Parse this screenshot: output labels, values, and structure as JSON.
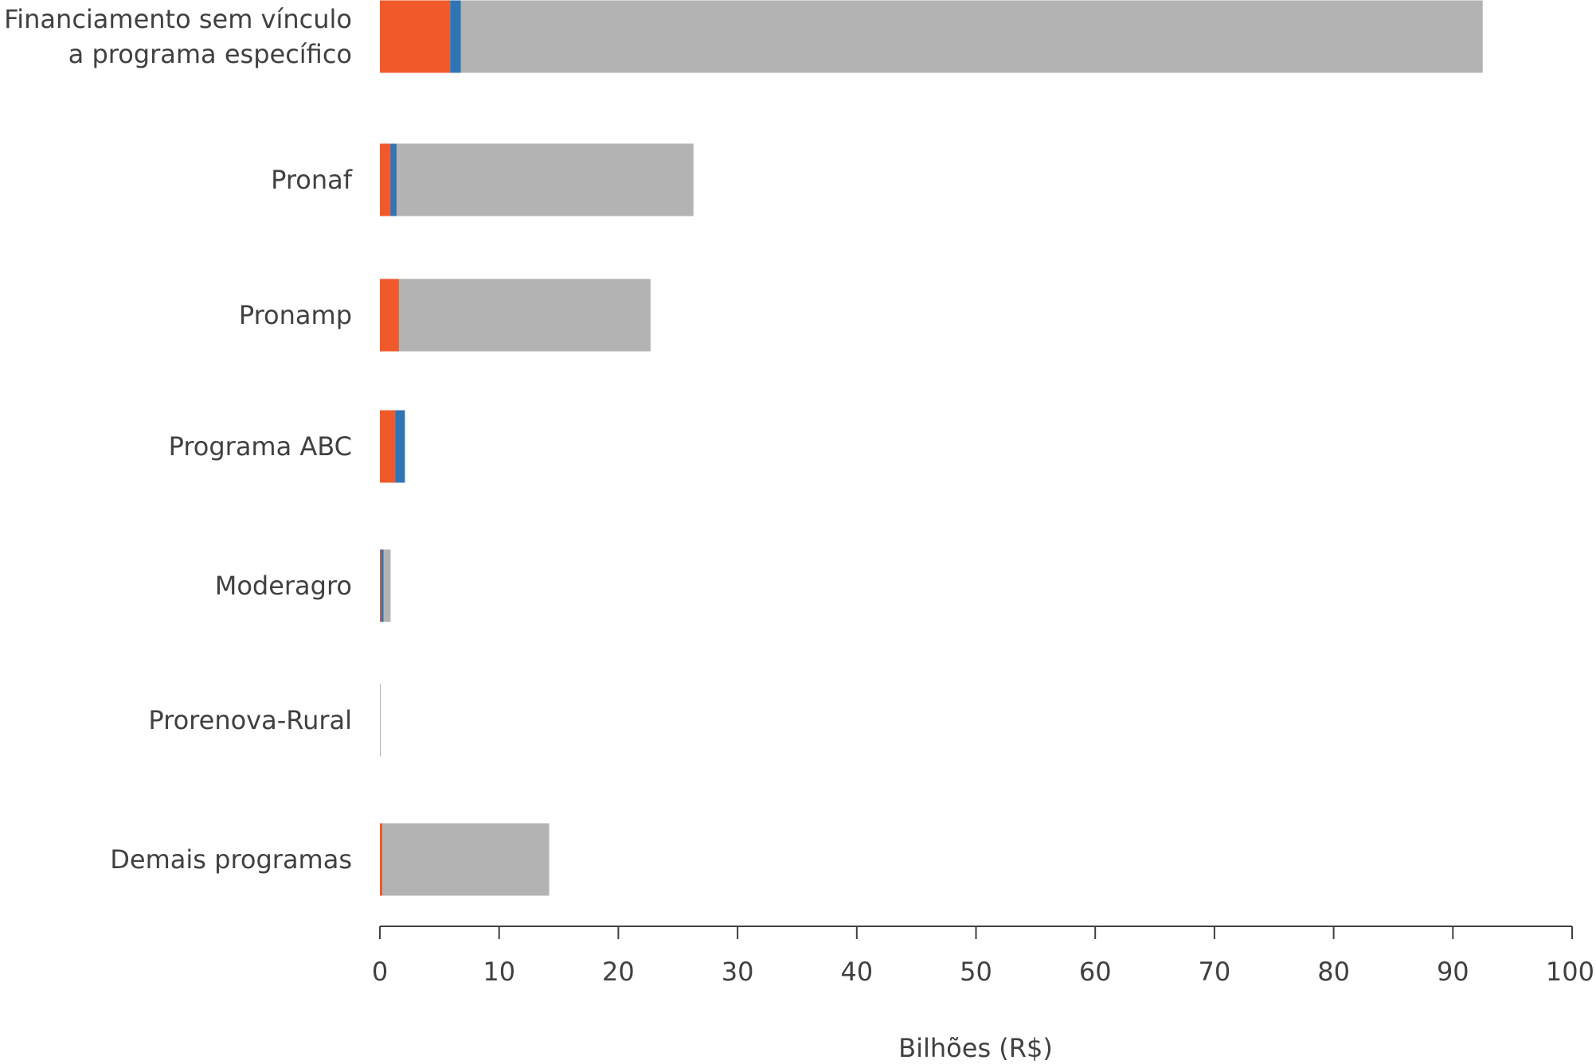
{
  "chart_data": {
    "type": "bar",
    "orientation": "horizontal",
    "stacked": true,
    "categories": [
      [
        "Financiamento sem vínculo",
        "a programa específico"
      ],
      [
        "Pronaf"
      ],
      [
        "Pronamp"
      ],
      [
        "Programa ABC"
      ],
      [
        "Moderagro"
      ],
      [
        "Prorenova-Rural"
      ],
      [
        "Demais programas"
      ]
    ],
    "series": [
      {
        "color": "#f05a2b",
        "values": [
          5.9,
          0.9,
          1.6,
          1.3,
          0.1,
          0.0,
          0.2
        ]
      },
      {
        "color": "#2f74b5",
        "values": [
          0.9,
          0.5,
          0.0,
          0.8,
          0.2,
          0.0,
          0.0
        ]
      },
      {
        "color": "#b3b3b3",
        "values": [
          85.7,
          24.9,
          21.1,
          0.0,
          0.6,
          0.05,
          14.0
        ]
      }
    ],
    "xlabel": "Bilhões (R$)",
    "xlim": [
      0,
      100
    ],
    "xticks": [
      "0",
      "10",
      "20",
      "30",
      "40",
      "50",
      "60",
      "70",
      "80",
      "90",
      "100"
    ],
    "grid": false,
    "legend": "none"
  }
}
